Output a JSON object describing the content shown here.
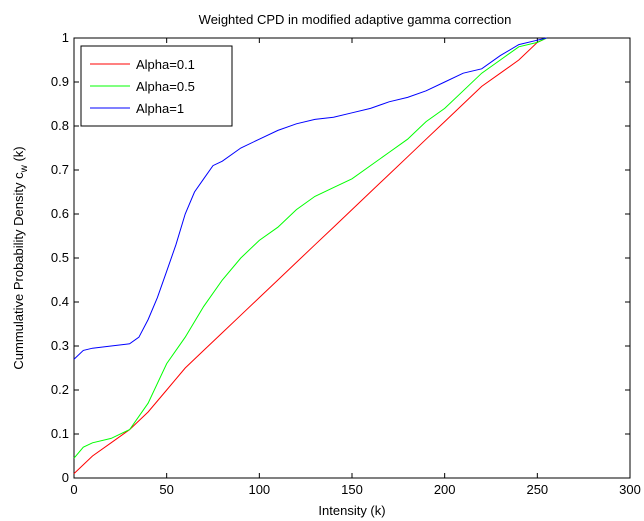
{
  "chart_data": {
    "type": "line",
    "title": "Weighted CPD in modified adaptive gamma correction",
    "xlabel": "Intensity (k)",
    "ylabel_main": "Cummulative Probability Density c",
    "ylabel_sub": "w",
    "ylabel_tail": " (k)",
    "xlim": [
      0,
      300
    ],
    "ylim": [
      0,
      1
    ],
    "x_ticks": [
      0,
      50,
      100,
      150,
      200,
      250,
      300
    ],
    "x_tick_labels": [
      "0",
      "50",
      "100",
      "150",
      "200",
      "250",
      "300"
    ],
    "y_ticks": [
      0,
      0.1,
      0.2,
      0.3,
      0.4,
      0.5,
      0.6,
      0.7,
      0.8,
      0.9,
      1
    ],
    "y_tick_labels": [
      "0",
      "0.1",
      "0.2",
      "0.3",
      "0.4",
      "0.5",
      "0.6",
      "0.7",
      "0.8",
      "0.9",
      "1"
    ],
    "grid": false,
    "legend_position": "top-left",
    "series": [
      {
        "name": "Alpha=0.1",
        "color": "#ff0000",
        "x": [
          0,
          10,
          20,
          30,
          40,
          50,
          60,
          70,
          80,
          90,
          100,
          110,
          120,
          130,
          140,
          150,
          160,
          170,
          180,
          190,
          200,
          210,
          220,
          230,
          240,
          250,
          255
        ],
        "y": [
          0.01,
          0.05,
          0.08,
          0.11,
          0.15,
          0.2,
          0.25,
          0.29,
          0.33,
          0.37,
          0.41,
          0.45,
          0.49,
          0.53,
          0.57,
          0.61,
          0.65,
          0.69,
          0.73,
          0.77,
          0.81,
          0.85,
          0.89,
          0.92,
          0.95,
          0.99,
          1.0
        ]
      },
      {
        "name": "Alpha=0.5",
        "color": "#00ff00",
        "x": [
          0,
          5,
          10,
          20,
          30,
          40,
          50,
          60,
          70,
          80,
          90,
          100,
          110,
          120,
          130,
          140,
          150,
          160,
          170,
          180,
          190,
          200,
          210,
          220,
          230,
          240,
          250,
          255
        ],
        "y": [
          0.045,
          0.07,
          0.08,
          0.09,
          0.11,
          0.17,
          0.26,
          0.32,
          0.39,
          0.45,
          0.5,
          0.54,
          0.57,
          0.61,
          0.64,
          0.66,
          0.68,
          0.71,
          0.74,
          0.77,
          0.81,
          0.84,
          0.88,
          0.92,
          0.95,
          0.98,
          0.99,
          1.0
        ]
      },
      {
        "name": "Alpha=1",
        "color": "#0000ff",
        "x": [
          0,
          5,
          10,
          20,
          30,
          35,
          40,
          45,
          50,
          55,
          60,
          65,
          70,
          75,
          80,
          90,
          100,
          110,
          120,
          130,
          140,
          150,
          160,
          170,
          180,
          190,
          200,
          210,
          220,
          230,
          240,
          250,
          255
        ],
        "y": [
          0.27,
          0.29,
          0.295,
          0.3,
          0.305,
          0.32,
          0.36,
          0.41,
          0.47,
          0.53,
          0.6,
          0.65,
          0.68,
          0.71,
          0.72,
          0.75,
          0.77,
          0.79,
          0.805,
          0.815,
          0.82,
          0.83,
          0.84,
          0.855,
          0.865,
          0.88,
          0.9,
          0.92,
          0.93,
          0.96,
          0.985,
          0.995,
          1.0
        ]
      }
    ]
  }
}
